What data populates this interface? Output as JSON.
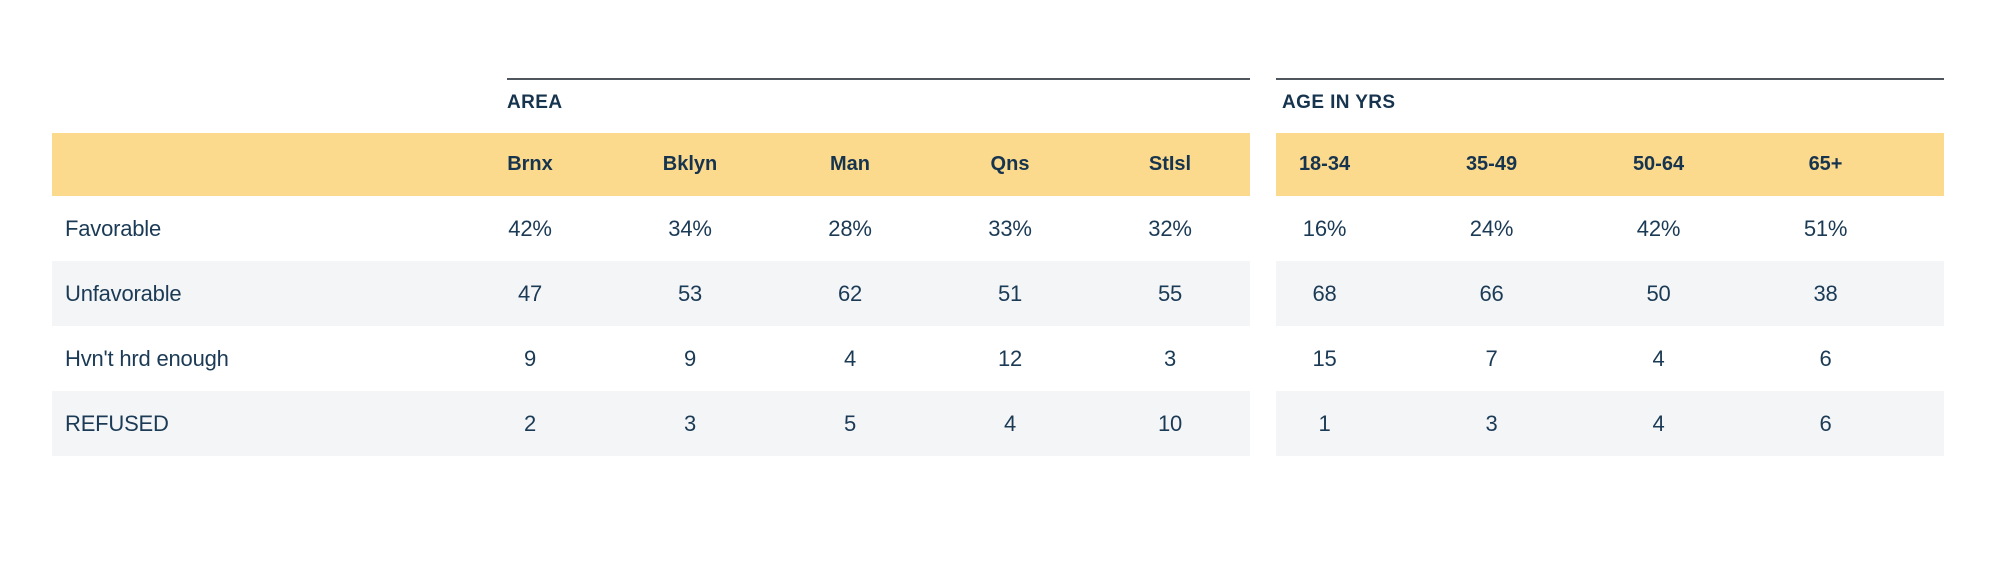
{
  "colors": {
    "header_band": "#FBD98D",
    "text_navy": "#17344E",
    "row_stripe": "#F4F5F7",
    "group_rule": "#50565E",
    "background": "#FFFFFF"
  },
  "chart_data": {
    "type": "table",
    "column_groups": [
      {
        "label": "AREA",
        "columns": [
          "Brnx",
          "Bklyn",
          "Man",
          "Qns",
          "StIsl"
        ]
      },
      {
        "label": "AGE IN YRS",
        "columns": [
          "18-34",
          "35-49",
          "50-64",
          "65+"
        ]
      }
    ],
    "rows": [
      {
        "label": "Favorable",
        "values": [
          "42%",
          "34%",
          "28%",
          "33%",
          "32%",
          "16%",
          "24%",
          "42%",
          "51%"
        ]
      },
      {
        "label": "Unfavorable",
        "values": [
          "47",
          "53",
          "62",
          "51",
          "55",
          "68",
          "66",
          "50",
          "38"
        ]
      },
      {
        "label": "Hvn't hrd enough",
        "values": [
          "9",
          "9",
          "4",
          "12",
          "3",
          "15",
          "7",
          "4",
          "6"
        ]
      },
      {
        "label": "REFUSED",
        "values": [
          "2",
          "3",
          "5",
          "4",
          "10",
          "1",
          "3",
          "4",
          "6"
        ]
      }
    ]
  }
}
